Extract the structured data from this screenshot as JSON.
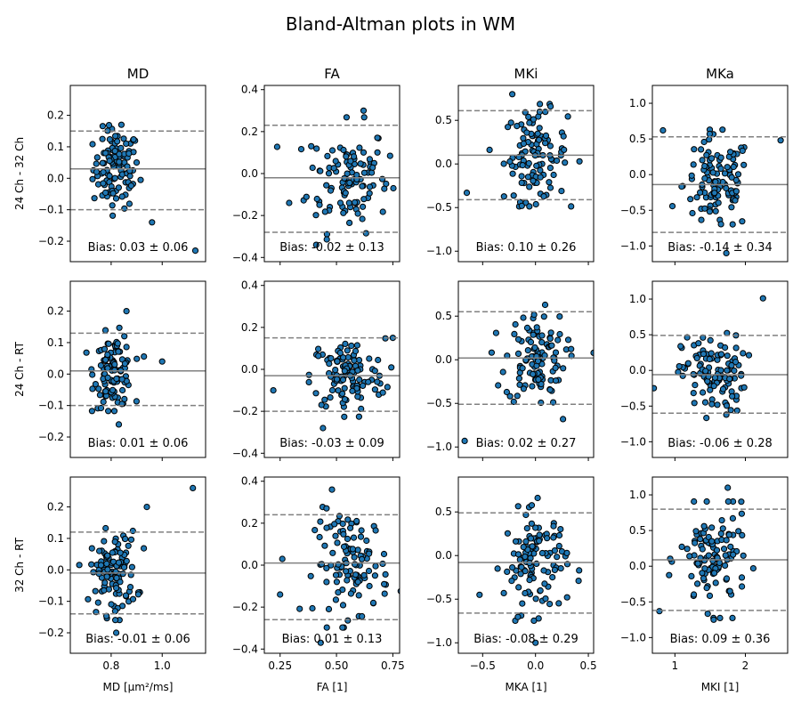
{
  "title": "Bland-Altman plots in WM",
  "chart_data": {
    "type": "scatter",
    "grid": false,
    "title": "Bland-Altman plots in WM",
    "column_titles": [
      "MD",
      "FA",
      "MKi",
      "MKa"
    ],
    "row_labels": [
      "24 Ch - 32 Ch",
      "24 Ch - RT",
      "32 Ch - RT"
    ],
    "xlabels": [
      "MD [µm²/ms]",
      "FA [1]",
      "MKA [1]",
      "MKI [1]"
    ],
    "xlims": [
      [
        0.64,
        1.17
      ],
      [
        0.18,
        0.78
      ],
      [
        -0.73,
        0.55
      ],
      [
        0.68,
        2.6
      ]
    ],
    "xticks": [
      {
        "values": [
          0.8,
          1.0
        ],
        "labels": [
          "0.8",
          "1.0"
        ]
      },
      {
        "values": [
          0.25,
          0.5,
          0.75
        ],
        "labels": [
          "0.25",
          "0.50",
          "0.75"
        ]
      },
      {
        "values": [
          -0.5,
          0.0,
          0.5
        ],
        "labels": [
          "−0.5",
          "0.0",
          "0.5"
        ]
      },
      {
        "values": [
          1,
          2
        ],
        "labels": [
          "1",
          "2"
        ]
      }
    ],
    "ylims": [
      [
        -0.265,
        0.295
      ],
      [
        -0.42,
        0.42
      ],
      [
        -1.12,
        0.9
      ],
      [
        -1.22,
        1.25
      ]
    ],
    "yticks": [
      {
        "values": [
          -0.2,
          -0.1,
          0.0,
          0.1,
          0.2
        ],
        "labels": [
          "−0.2",
          "−0.1",
          "0.0",
          "0.1",
          "0.2"
        ]
      },
      {
        "values": [
          -0.4,
          -0.2,
          0.0,
          0.2,
          0.4
        ],
        "labels": [
          "−0.4",
          "−0.2",
          "0.0",
          "0.2",
          "0.4"
        ]
      },
      {
        "values": [
          -1.0,
          -0.5,
          0.0,
          0.5
        ],
        "labels": [
          "−1.0",
          "−0.5",
          "0.0",
          "0.5"
        ]
      },
      {
        "values": [
          -1.0,
          -0.5,
          0.0,
          0.5,
          1.0
        ],
        "labels": [
          "−1.0",
          "−0.5",
          "0.0",
          "0.5",
          "1.0"
        ]
      }
    ],
    "panels": [
      {
        "row": 0,
        "col": 0,
        "bias": 0.03,
        "sd": 0.06,
        "loa": [
          -0.1,
          0.15
        ],
        "annotation": "Bias: 0.03 ± 0.06",
        "x_center": 0.82,
        "x_spread": 0.06,
        "outliers": [
          [
            1.13,
            -0.23
          ],
          [
            0.96,
            -0.14
          ],
          [
            0.84,
            0.17
          ]
        ]
      },
      {
        "row": 0,
        "col": 1,
        "bias": -0.02,
        "sd": 0.13,
        "loa": [
          -0.28,
          0.23
        ],
        "annotation": "Bias: -0.02 ± 0.13",
        "x_center": 0.55,
        "x_spread": 0.12,
        "outliers": [
          [
            0.41,
            -0.34
          ],
          [
            0.62,
            0.3
          ],
          [
            0.29,
            -0.14
          ]
        ]
      },
      {
        "row": 0,
        "col": 2,
        "bias": 0.1,
        "sd": 0.26,
        "loa": [
          -0.41,
          0.61
        ],
        "annotation": "Bias: 0.10 ± 0.26",
        "x_center": 0.0,
        "x_spread": 0.2,
        "outliers": [
          [
            -0.65,
            -0.33
          ],
          [
            -0.22,
            0.8
          ],
          [
            -0.13,
            -0.48
          ]
        ]
      },
      {
        "row": 0,
        "col": 3,
        "bias": -0.14,
        "sd": 0.34,
        "loa": [
          -0.81,
          0.53
        ],
        "annotation": "Bias: -0.14 ± 0.34",
        "x_center": 1.6,
        "x_spread": 0.32,
        "outliers": [
          [
            2.5,
            0.48
          ],
          [
            0.83,
            0.62
          ],
          [
            1.73,
            -1.1
          ]
        ]
      },
      {
        "row": 1,
        "col": 0,
        "bias": 0.01,
        "sd": 0.06,
        "loa": [
          -0.1,
          0.13
        ],
        "annotation": "Bias: 0.01 ± 0.06",
        "x_center": 0.81,
        "x_spread": 0.05,
        "outliers": [
          [
            0.86,
            0.2
          ],
          [
            1.0,
            0.04
          ],
          [
            0.83,
            -0.16
          ]
        ]
      },
      {
        "row": 1,
        "col": 1,
        "bias": -0.03,
        "sd": 0.09,
        "loa": [
          -0.2,
          0.15
        ],
        "annotation": "Bias: -0.03 ± 0.09",
        "x_center": 0.55,
        "x_spread": 0.11,
        "outliers": [
          [
            0.44,
            -0.28
          ],
          [
            0.75,
            0.15
          ],
          [
            0.22,
            -0.1
          ]
        ]
      },
      {
        "row": 1,
        "col": 2,
        "bias": 0.02,
        "sd": 0.27,
        "loa": [
          -0.51,
          0.55
        ],
        "annotation": "Bias: 0.02 ± 0.27",
        "x_center": 0.0,
        "x_spread": 0.19,
        "outliers": [
          [
            -0.67,
            -0.93
          ],
          [
            0.55,
            0.08
          ],
          [
            0.26,
            -0.68
          ]
        ]
      },
      {
        "row": 1,
        "col": 3,
        "bias": -0.06,
        "sd": 0.28,
        "loa": [
          -0.6,
          0.49
        ],
        "annotation": "Bias: -0.06 ± 0.28",
        "x_center": 1.55,
        "x_spread": 0.3,
        "outliers": [
          [
            2.25,
            1.01
          ],
          [
            0.7,
            -0.25
          ],
          [
            1.73,
            -0.62
          ]
        ]
      },
      {
        "row": 2,
        "col": 0,
        "bias": -0.01,
        "sd": 0.06,
        "loa": [
          -0.14,
          0.12
        ],
        "annotation": "Bias: -0.01 ± 0.06",
        "x_center": 0.81,
        "x_spread": 0.06,
        "outliers": [
          [
            1.12,
            0.26
          ],
          [
            0.94,
            0.2
          ],
          [
            0.82,
            -0.2
          ]
        ]
      },
      {
        "row": 2,
        "col": 1,
        "bias": 0.01,
        "sd": 0.13,
        "loa": [
          -0.26,
          0.24
        ],
        "annotation": "Bias: 0.01 ± 0.13",
        "x_center": 0.57,
        "x_spread": 0.11,
        "outliers": [
          [
            0.48,
            0.36
          ],
          [
            0.43,
            -0.37
          ],
          [
            0.25,
            -0.14
          ]
        ]
      },
      {
        "row": 2,
        "col": 2,
        "bias": -0.08,
        "sd": 0.29,
        "loa": [
          -0.66,
          0.49
        ],
        "annotation": "Bias: -0.08 ± 0.29",
        "x_center": 0.0,
        "x_spread": 0.2,
        "outliers": [
          [
            0.0,
            -1.0
          ],
          [
            0.02,
            0.66
          ],
          [
            -0.53,
            -0.45
          ]
        ]
      },
      {
        "row": 2,
        "col": 3,
        "bias": 0.09,
        "sd": 0.36,
        "loa": [
          -0.62,
          0.8
        ],
        "annotation": "Bias: 0.09 ± 0.36",
        "x_center": 1.55,
        "x_spread": 0.32,
        "outliers": [
          [
            1.75,
            1.1
          ],
          [
            0.78,
            -0.63
          ],
          [
            1.55,
            -0.75
          ]
        ]
      }
    ],
    "n_points_per_panel": 110,
    "marker_color": "#1f77b4",
    "marker_edge": "#000000",
    "bias_line_color": "#808080",
    "loa_line_color": "#808080"
  }
}
